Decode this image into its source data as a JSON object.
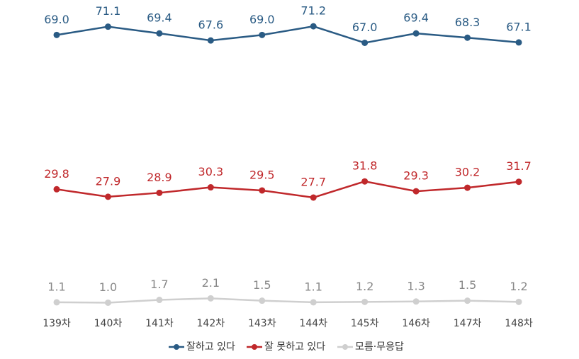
{
  "chart_data": {
    "type": "line",
    "categories": [
      "139차",
      "140차",
      "141차",
      "142차",
      "143차",
      "144차",
      "145차",
      "146차",
      "147차",
      "148차"
    ],
    "ylim": [
      0,
      75
    ],
    "series": [
      {
        "name": "잘하고 있다",
        "color": "#2a5b84",
        "values": [
          69.0,
          71.1,
          69.4,
          67.6,
          69.0,
          71.2,
          67.0,
          69.4,
          68.3,
          67.1
        ],
        "value_labels": [
          "69.0",
          "71.1",
          "69.4",
          "67.6",
          "69.0",
          "71.2",
          "67.0",
          "69.4",
          "68.3",
          "67.1"
        ]
      },
      {
        "name": "잘 못하고 있다",
        "color": "#c0282b",
        "values": [
          29.8,
          27.9,
          28.9,
          30.3,
          29.5,
          27.7,
          31.8,
          29.3,
          30.2,
          31.7
        ],
        "value_labels": [
          "29.8",
          "27.9",
          "28.9",
          "30.3",
          "29.5",
          "27.7",
          "31.8",
          "29.3",
          "30.2",
          "31.7"
        ]
      },
      {
        "name": "모름·무응답",
        "color": "#cfcfcf",
        "values": [
          1.1,
          1.0,
          1.7,
          2.1,
          1.5,
          1.1,
          1.2,
          1.3,
          1.5,
          1.2
        ],
        "value_labels": [
          "1.1",
          "1.0",
          "1.7",
          "2.1",
          "1.5",
          "1.1",
          "1.2",
          "1.3",
          "1.5",
          "1.2"
        ]
      }
    ]
  }
}
